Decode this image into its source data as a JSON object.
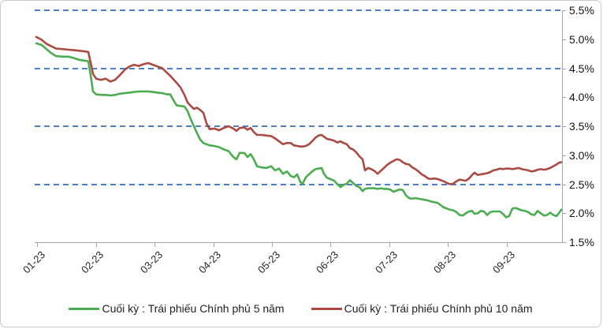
{
  "chart_data": {
    "type": "line",
    "title": "",
    "unit": "%",
    "grid": "dashed-horizontal",
    "legend_position": "bottom",
    "x_axis": {
      "labels": [
        "01-23",
        "02-23",
        "03-23",
        "04-23",
        "05-23",
        "06-23",
        "07-23",
        "08-23",
        "09-23"
      ],
      "tick_positions_pct": [
        0.15,
        11.34,
        22.52,
        33.71,
        44.89,
        56.08,
        67.27,
        78.45,
        89.64
      ]
    },
    "y_axis": {
      "min": 1.5,
      "max": 5.5,
      "step": 0.5,
      "tick_labels": [
        "5.5%",
        "5.0%",
        "4.5%",
        "4.0%",
        "3.5%",
        "3.0%",
        "2.5%",
        "2.0%",
        "1.5%"
      ],
      "gridline_values": [
        5.5,
        4.5,
        3.5,
        2.5
      ]
    },
    "x_pct": [
      0,
      1.05,
      1.95,
      2.85,
      3.75,
      4.95,
      6.15,
      7.36,
      8.41,
      9.31,
      9.91,
      10.36,
      10.81,
      11.41,
      12.31,
      13.21,
      14.11,
      15.02,
      15.92,
      16.82,
      17.72,
      18.62,
      19.52,
      20.42,
      21.32,
      22.22,
      23.12,
      24.02,
      24.92,
      25.53,
      26.13,
      26.73,
      27.48,
      28.23,
      28.83,
      29.43,
      30.03,
      30.63,
      31.23,
      31.83,
      32.43,
      33.03,
      33.93,
      34.83,
      35.74,
      36.64,
      37.54,
      38.14,
      38.74,
      39.64,
      40.24,
      40.84,
      41.44,
      42.04,
      42.94,
      43.84,
      44.74,
      45.5,
      46.25,
      47.0,
      47.75,
      48.5,
      49.1,
      49.7,
      50.3,
      50.75,
      51.35,
      51.95,
      52.55,
      53.15,
      53.75,
      54.35,
      54.8,
      55.41,
      56.01,
      56.76,
      57.36,
      57.96,
      58.56,
      59.16,
      59.76,
      60.36,
      60.96,
      61.56,
      62.16,
      62.61,
      63.21,
      63.81,
      64.41,
      65.02,
      65.62,
      66.22,
      66.82,
      67.42,
      68.02,
      68.62,
      69.22,
      69.82,
      70.42,
      71.02,
      71.62,
      72.22,
      72.82,
      73.42,
      74.02,
      74.62,
      75.23,
      75.83,
      76.43,
      77.03,
      77.63,
      78.23,
      78.83,
      79.43,
      80.03,
      80.63,
      81.23,
      81.83,
      82.43,
      83.03,
      83.48,
      84.08,
      84.68,
      85.29,
      85.89,
      86.49,
      87.09,
      87.69,
      88.29,
      88.89,
      89.49,
      90.09,
      90.69,
      91.29,
      91.89,
      92.49,
      93.09,
      93.69,
      94.29,
      94.89,
      95.5,
      96.1,
      96.7,
      97.3,
      97.9,
      98.5,
      99.1,
      99.55,
      100
    ],
    "series": [
      {
        "name": "Cuối kỳ : Trái phiếu Chính phủ 5 năm",
        "color": "#4aad50",
        "values": [
          4.93,
          4.9,
          4.83,
          4.76,
          4.71,
          4.7,
          4.7,
          4.67,
          4.64,
          4.63,
          4.62,
          4.38,
          4.1,
          4.05,
          4.04,
          4.04,
          4.03,
          4.04,
          4.06,
          4.07,
          4.08,
          4.09,
          4.1,
          4.1,
          4.1,
          4.09,
          4.08,
          4.07,
          4.05,
          4.05,
          3.95,
          3.86,
          3.85,
          3.84,
          3.76,
          3.62,
          3.5,
          3.38,
          3.27,
          3.21,
          3.19,
          3.17,
          3.16,
          3.14,
          3.1,
          3.07,
          2.97,
          2.93,
          3.04,
          3.04,
          2.97,
          3.02,
          2.93,
          2.81,
          2.79,
          2.78,
          2.81,
          2.74,
          2.77,
          2.68,
          2.72,
          2.64,
          2.62,
          2.67,
          2.54,
          2.51,
          2.62,
          2.67,
          2.72,
          2.76,
          2.77,
          2.78,
          2.68,
          2.61,
          2.59,
          2.56,
          2.5,
          2.45,
          2.49,
          2.51,
          2.57,
          2.52,
          2.47,
          2.45,
          2.38,
          2.42,
          2.43,
          2.43,
          2.43,
          2.42,
          2.43,
          2.42,
          2.42,
          2.41,
          2.37,
          2.39,
          2.41,
          2.4,
          2.31,
          2.26,
          2.25,
          2.26,
          2.25,
          2.24,
          2.23,
          2.22,
          2.2,
          2.19,
          2.18,
          2.14,
          2.1,
          2.08,
          2.06,
          2.05,
          2.02,
          1.97,
          1.96,
          2.0,
          2.03,
          2.04,
          1.99,
          2.0,
          2.04,
          2.03,
          1.97,
          2.02,
          2.03,
          2.03,
          2.03,
          1.99,
          1.93,
          1.95,
          2.08,
          2.09,
          2.07,
          2.05,
          2.04,
          2.02,
          1.98,
          1.97,
          2.04,
          2.0,
          1.96,
          1.97,
          2.01,
          1.97,
          1.95,
          2.0,
          2.06
        ]
      },
      {
        "name": "Cuối kỳ : Trái phiếu Chính phủ 10 năm",
        "color": "#ab4a42",
        "values": [
          5.04,
          4.99,
          4.92,
          4.88,
          4.84,
          4.83,
          4.82,
          4.81,
          4.8,
          4.79,
          4.78,
          4.6,
          4.4,
          4.32,
          4.3,
          4.32,
          4.27,
          4.3,
          4.38,
          4.47,
          4.53,
          4.56,
          4.54,
          4.57,
          4.59,
          4.56,
          4.53,
          4.5,
          4.42,
          4.37,
          4.31,
          4.25,
          4.17,
          4.04,
          3.91,
          3.85,
          3.8,
          3.82,
          3.78,
          3.73,
          3.55,
          3.45,
          3.46,
          3.43,
          3.47,
          3.5,
          3.46,
          3.42,
          3.47,
          3.48,
          3.44,
          3.47,
          3.4,
          3.35,
          3.35,
          3.34,
          3.33,
          3.29,
          3.24,
          3.19,
          3.21,
          3.21,
          3.17,
          3.16,
          3.15,
          3.15,
          3.16,
          3.19,
          3.24,
          3.3,
          3.34,
          3.35,
          3.32,
          3.28,
          3.27,
          3.25,
          3.22,
          3.24,
          3.21,
          3.19,
          3.12,
          3.1,
          3.05,
          2.98,
          2.93,
          2.74,
          2.78,
          2.76,
          2.73,
          2.68,
          2.73,
          2.78,
          2.83,
          2.87,
          2.9,
          2.93,
          2.92,
          2.88,
          2.85,
          2.84,
          2.79,
          2.76,
          2.72,
          2.67,
          2.64,
          2.6,
          2.59,
          2.6,
          2.59,
          2.57,
          2.55,
          2.52,
          2.5,
          2.51,
          2.55,
          2.58,
          2.57,
          2.56,
          2.6,
          2.66,
          2.7,
          2.66,
          2.67,
          2.68,
          2.69,
          2.71,
          2.74,
          2.75,
          2.77,
          2.76,
          2.77,
          2.77,
          2.76,
          2.77,
          2.78,
          2.76,
          2.75,
          2.74,
          2.72,
          2.73,
          2.75,
          2.76,
          2.75,
          2.76,
          2.78,
          2.81,
          2.84,
          2.87,
          2.88
        ]
      }
    ]
  },
  "colors": {
    "gridline": "#4c80c2",
    "axis": "#a3a3a3",
    "text": "#1f1f1f",
    "background": "#ffffff",
    "card_border": "#c9c9c9"
  }
}
